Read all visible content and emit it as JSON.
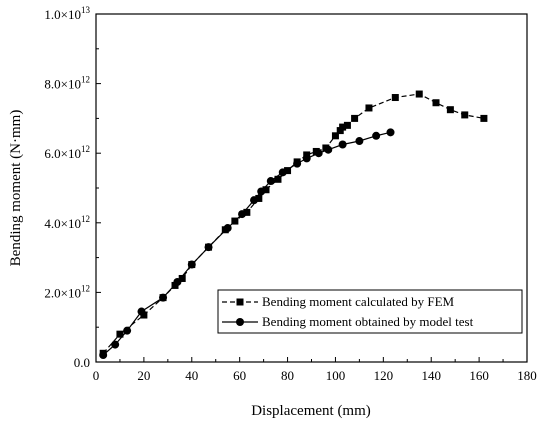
{
  "chart_data": {
    "type": "line",
    "xlabel": "Displacement (mm)",
    "ylabel": "Bending moment (N·mm)",
    "xlim": [
      0,
      180
    ],
    "ylim": [
      0,
      10000000000000.0
    ],
    "x_ticks": [
      {
        "value": 0,
        "label": "0"
      },
      {
        "value": 20,
        "label": "20"
      },
      {
        "value": 40,
        "label": "40"
      },
      {
        "value": 60,
        "label": "60"
      },
      {
        "value": 80,
        "label": "80"
      },
      {
        "value": 100,
        "label": "100"
      },
      {
        "value": 120,
        "label": "120"
      },
      {
        "value": 140,
        "label": "140"
      },
      {
        "value": 160,
        "label": "160"
      },
      {
        "value": 180,
        "label": "180"
      }
    ],
    "y_ticks": [
      {
        "value": 0,
        "mantissa": "0.0",
        "exponent": ""
      },
      {
        "value": 2000000000000.0,
        "mantissa": "2.0×10",
        "exponent": "12"
      },
      {
        "value": 4000000000000.0,
        "mantissa": "4.0×10",
        "exponent": "12"
      },
      {
        "value": 6000000000000.0,
        "mantissa": "6.0×10",
        "exponent": "12"
      },
      {
        "value": 8000000000000.0,
        "mantissa": "8.0×10",
        "exponent": "12"
      },
      {
        "value": 10000000000000.0,
        "mantissa": "1.0×10",
        "exponent": "13"
      }
    ],
    "grid": false,
    "legend_position": "bottom-right",
    "series": [
      {
        "name": "Bending moment calculated by FEM",
        "marker": "square",
        "line_style": "dashed",
        "x": [
          3,
          10,
          20,
          28,
          33,
          36,
          40,
          47,
          54,
          58,
          63,
          68,
          71,
          76,
          80,
          84,
          88,
          92,
          96,
          100,
          102,
          103,
          105,
          108,
          114,
          125,
          135,
          142,
          148,
          154,
          162
        ],
        "y": [
          250000000000.0,
          800000000000.0,
          1350000000000.0,
          1850000000000.0,
          2200000000000.0,
          2400000000000.0,
          2800000000000.0,
          3300000000000.0,
          3800000000000.0,
          4050000000000.0,
          4300000000000.0,
          4700000000000.0,
          4950000000000.0,
          5250000000000.0,
          5500000000000.0,
          5750000000000.0,
          5950000000000.0,
          6050000000000.0,
          6150000000000.0,
          6500000000000.0,
          6650000000000.0,
          6750000000000.0,
          6800000000000.0,
          7000000000000.0,
          7300000000000.0,
          7600000000000.0,
          7700000000000.0,
          7450000000000.0,
          7250000000000.0,
          7100000000000.0,
          7000000000000.0
        ]
      },
      {
        "name": "Bending moment obtained by model test",
        "marker": "circle",
        "line_style": "solid",
        "x": [
          3,
          8,
          13,
          19,
          28,
          34,
          40,
          47,
          55,
          61,
          66,
          69,
          73,
          78,
          84,
          88,
          93,
          97,
          103,
          110,
          117,
          123
        ],
        "y": [
          200000000000.0,
          500000000000.0,
          900000000000.0,
          1450000000000.0,
          1850000000000.0,
          2300000000000.0,
          2800000000000.0,
          3300000000000.0,
          3850000000000.0,
          4250000000000.0,
          4650000000000.0,
          4900000000000.0,
          5200000000000.0,
          5450000000000.0,
          5700000000000.0,
          5850000000000.0,
          6000000000000.0,
          6100000000000.0,
          6250000000000.0,
          6350000000000.0,
          6500000000000.0,
          6600000000000.0
        ]
      }
    ]
  }
}
